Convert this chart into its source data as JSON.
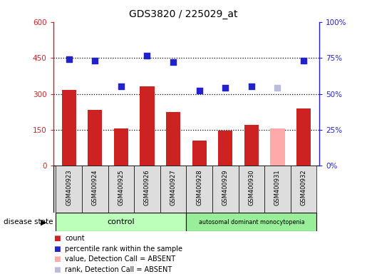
{
  "title": "GDS3820 / 225029_at",
  "samples": [
    "GSM400923",
    "GSM400924",
    "GSM400925",
    "GSM400926",
    "GSM400927",
    "GSM400928",
    "GSM400929",
    "GSM400930",
    "GSM400931",
    "GSM400932"
  ],
  "count_values": [
    315,
    232,
    155,
    330,
    225,
    105,
    148,
    170,
    155,
    240
  ],
  "percentile_values": [
    74,
    73,
    55,
    76.5,
    72,
    52,
    54,
    55,
    54,
    73
  ],
  "bar_colors": [
    "#cc2222",
    "#cc2222",
    "#cc2222",
    "#cc2222",
    "#cc2222",
    "#cc2222",
    "#cc2222",
    "#cc2222",
    "#ffaaaa",
    "#cc2222"
  ],
  "dot_colors": [
    "#2222cc",
    "#2222cc",
    "#2222cc",
    "#2222cc",
    "#2222cc",
    "#2222cc",
    "#2222cc",
    "#2222cc",
    "#bbbbdd",
    "#2222cc"
  ],
  "control_label": "control",
  "disease_label": "autosomal dominant monocytopenia",
  "ylim_left": [
    0,
    600
  ],
  "ylim_right": [
    0,
    100
  ],
  "left_ticks": [
    0,
    150,
    300,
    450,
    600
  ],
  "right_ticks": [
    0,
    25,
    50,
    75,
    100
  ],
  "right_tick_labels": [
    "0%",
    "25%",
    "50%",
    "75%",
    "100%"
  ],
  "left_axis_color": "#cc2222",
  "right_axis_color": "#2222cc",
  "bg_color": "#ffffff",
  "control_bg": "#bbffbb",
  "disease_bg": "#99ee99",
  "sample_bg": "#dddddd",
  "legend_items": [
    {
      "color": "#cc2222",
      "label": "count"
    },
    {
      "color": "#2222cc",
      "label": "percentile rank within the sample"
    },
    {
      "color": "#ffaaaa",
      "label": "value, Detection Call = ABSENT"
    },
    {
      "color": "#bbbbdd",
      "label": "rank, Detection Call = ABSENT"
    }
  ]
}
